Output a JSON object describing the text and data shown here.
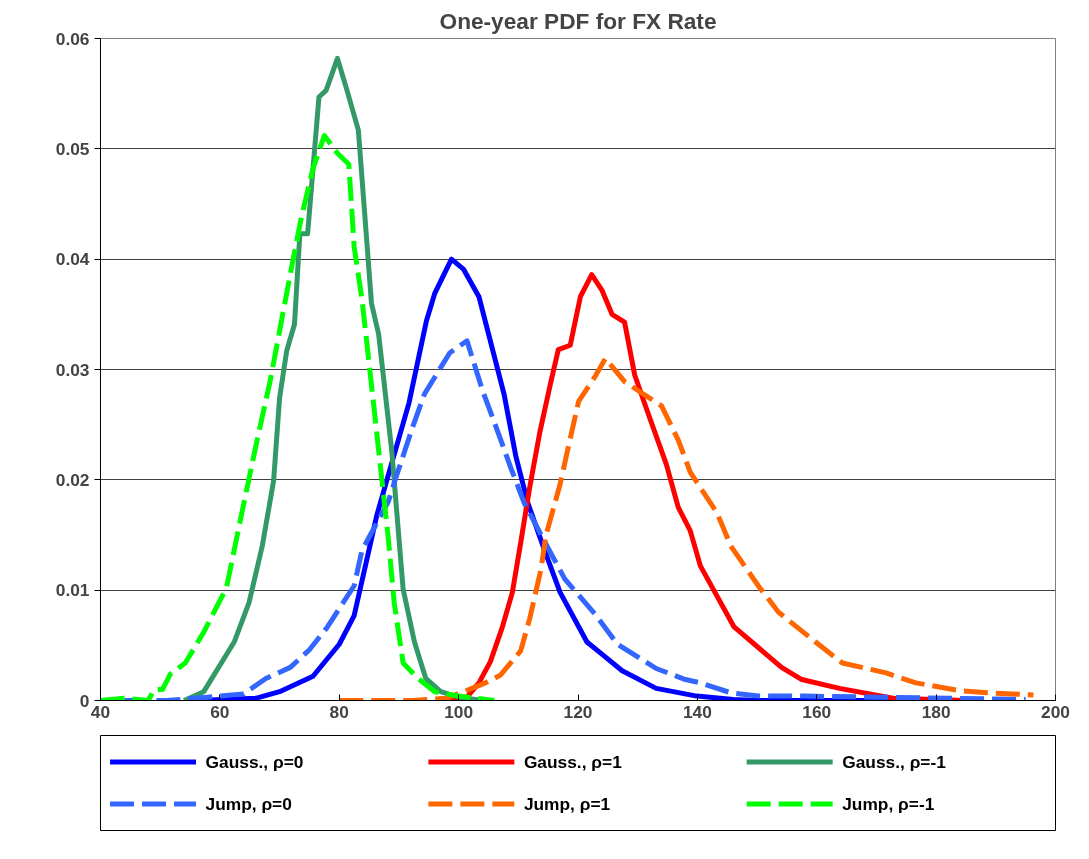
{
  "chart_data": {
    "type": "line",
    "title": "One-year PDF for FX Rate",
    "xlim": [
      40,
      200
    ],
    "xticks": [
      40,
      60,
      80,
      100,
      120,
      140,
      160,
      180,
      200
    ],
    "ylim": [
      0,
      0.06
    ],
    "yticks": [
      0,
      0.01,
      0.02,
      0.03,
      0.04,
      0.05,
      0.06
    ],
    "grid": "y",
    "legend": "bottom",
    "marker": "none",
    "series": [
      {
        "name": "Gauss., ρ=0",
        "color": "#0000ff",
        "line_style": "solid",
        "x": [
          56,
          66,
          70,
          75.6,
          80,
          82.5,
          86.3,
          91.7,
          94.6,
          96,
          98.8,
          100.8,
          103.4,
          107.6,
          109.6,
          111.6,
          114.4,
          117,
          121.5,
          124,
          127.4,
          133.1,
          139.9,
          146,
          150,
          175
        ],
        "values": [
          0,
          0.0002,
          0.0008,
          0.0022,
          0.0051,
          0.0077,
          0.0168,
          0.027,
          0.0344,
          0.0369,
          0.04,
          0.0391,
          0.0366,
          0.0278,
          0.0221,
          0.0179,
          0.0136,
          0.0098,
          0.0053,
          0.0042,
          0.0027,
          0.0011,
          0.0004,
          0.0001,
          0,
          0
        ]
      },
      {
        "name": "Gauss., ρ=1",
        "color": "#ff0000",
        "line_style": "solid",
        "x": [
          98,
          101.4,
          103.4,
          105.3,
          107.3,
          109,
          110.4,
          111.9,
          113.6,
          115.3,
          116.7,
          118.7,
          120.4,
          122.3,
          124,
          125.7,
          127.8,
          129.5,
          131.5,
          134.8,
          136.8,
          138.8,
          140.5,
          146.1,
          154.1,
          157.5,
          163.8,
          172.8,
          185
        ],
        "values": [
          0,
          0.0003,
          0.0016,
          0.0035,
          0.0066,
          0.0098,
          0.0143,
          0.0193,
          0.0243,
          0.0285,
          0.0318,
          0.0322,
          0.0366,
          0.0386,
          0.0372,
          0.035,
          0.0343,
          0.0295,
          0.0264,
          0.0214,
          0.0175,
          0.0154,
          0.0122,
          0.0067,
          0.003,
          0.0019,
          0.0011,
          0.0002,
          0
        ]
      },
      {
        "name": "Gauss., ρ=-1",
        "color": "#339966",
        "line_style": "solid",
        "x": [
          54,
          57.3,
          62.4,
          64.9,
          67.1,
          69,
          70,
          71.2,
          72.5,
          73.4,
          74.7,
          76.6,
          77.8,
          79.7,
          81.3,
          83.2,
          85.4,
          86.6,
          88.8,
          90.7,
          92.6,
          94.5,
          97,
          100,
          104
        ],
        "values": [
          0,
          0.0008,
          0.0053,
          0.0089,
          0.014,
          0.0199,
          0.0274,
          0.0317,
          0.0341,
          0.0423,
          0.0423,
          0.0547,
          0.0553,
          0.0582,
          0.0553,
          0.0517,
          0.036,
          0.0332,
          0.0226,
          0.0101,
          0.0053,
          0.002,
          0.0008,
          0.0003,
          0
        ]
      },
      {
        "name": "Jump,   ρ=0",
        "color": "#3366ff",
        "line_style": "dashed",
        "x": [
          44,
          51,
          58,
          64,
          67.7,
          71.8,
          75,
          77.8,
          82.5,
          83.8,
          88.2,
          89.8,
          92.3,
          94.3,
          98.5,
          101.4,
          104,
          106,
          108.8,
          111,
          115,
          117.8,
          122.9,
          126.6,
          133.1,
          138,
          140.5,
          145.6,
          150.2,
          158,
          170.3,
          182.5,
          195
        ],
        "values": [
          0,
          0,
          0.0003,
          0.0006,
          0.002,
          0.003,
          0.0046,
          0.0065,
          0.0104,
          0.0136,
          0.018,
          0.0207,
          0.0248,
          0.0278,
          0.0315,
          0.0326,
          0.0281,
          0.0252,
          0.021,
          0.0179,
          0.0138,
          0.011,
          0.0078,
          0.0051,
          0.0029,
          0.0019,
          0.0016,
          0.0007,
          0.0004,
          0.0004,
          0.0003,
          0.0002,
          0.0001
        ]
      },
      {
        "name": "Jump,   ρ=1",
        "color": "#ff6600",
        "line_style": "dashed",
        "x": [
          80,
          92.3,
          98,
          104.5,
          107,
          110.4,
          111.9,
          113.8,
          114.6,
          117,
          118.1,
          120.1,
          122.9,
          124.6,
          127.8,
          132,
          134,
          136.8,
          138.8,
          143.3,
          145.6,
          150.2,
          153.6,
          159.8,
          164.3,
          171.6,
          176.6,
          183.9,
          188.6,
          196.3
        ],
        "values": [
          0,
          0,
          0.0002,
          0.0016,
          0.0023,
          0.0045,
          0.0074,
          0.0119,
          0.0149,
          0.0196,
          0.0223,
          0.0271,
          0.0294,
          0.031,
          0.0289,
          0.0274,
          0.0267,
          0.0236,
          0.0207,
          0.017,
          0.014,
          0.0104,
          0.008,
          0.0053,
          0.0034,
          0.0025,
          0.0016,
          0.0009,
          0.0007,
          0.0005
        ]
      },
      {
        "name": "Jump,   ρ=-1",
        "color": "#00ff00",
        "line_style": "dashed",
        "x": [
          40,
          44,
          48,
          49,
          50.4,
          51.7,
          54.2,
          57.3,
          61.1,
          63.6,
          66.2,
          68.4,
          69.9,
          72.1,
          73.7,
          75.6,
          77.5,
          79.7,
          81.6,
          82.5,
          83.8,
          85.4,
          87,
          88.2,
          89.2,
          90.7,
          93.2,
          96,
          100,
          106
        ],
        "values": [
          0,
          0.0002,
          0,
          0.001,
          0.001,
          0.0024,
          0.0034,
          0.0062,
          0.0102,
          0.0168,
          0.0235,
          0.0289,
          0.0332,
          0.0395,
          0.0439,
          0.0482,
          0.0512,
          0.0496,
          0.0486,
          0.0411,
          0.0364,
          0.0286,
          0.0207,
          0.0148,
          0.0089,
          0.0034,
          0.002,
          0.0008,
          0.0004,
          0
        ]
      }
    ]
  }
}
